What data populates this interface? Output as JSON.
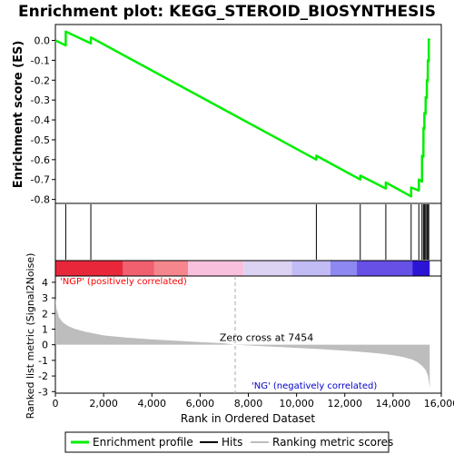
{
  "chart_data": {
    "type": "line",
    "title": "Enrichment plot: KEGG_STEROID_BIOSYNTHESIS",
    "es_panel": {
      "ylabel": "Enrichment score (ES)",
      "ylim": [
        -0.82,
        0.08
      ],
      "yticks": [
        0.0,
        -0.1,
        -0.2,
        -0.3,
        -0.4,
        -0.5,
        -0.6,
        -0.7,
        -0.8
      ],
      "ytick_labels": [
        "0.0",
        "-0.1",
        "-0.2",
        "-0.3",
        "-0.4",
        "-0.5",
        "-0.6",
        "-0.7",
        "-0.8"
      ],
      "series": [
        {
          "name": "Enrichment profile",
          "color": "#00ee00",
          "x": [
            0,
            430,
            431,
            1470,
            1471,
            10820,
            10821,
            12640,
            12641,
            13700,
            13701,
            14750,
            14751,
            15070,
            15071,
            15200,
            15201,
            15260,
            15261,
            15300,
            15301,
            15350,
            15351,
            15400,
            15401,
            15440,
            15441,
            15480,
            15481,
            15520
          ],
          "y": [
            0.0,
            -0.025,
            0.045,
            -0.015,
            0.015,
            -0.6,
            -0.58,
            -0.7,
            -0.68,
            -0.745,
            -0.715,
            -0.785,
            -0.74,
            -0.755,
            -0.7,
            -0.71,
            -0.58,
            -0.585,
            -0.44,
            -0.445,
            -0.365,
            -0.37,
            -0.285,
            -0.29,
            -0.2,
            -0.205,
            -0.1,
            -0.105,
            0.005,
            0.0
          ]
        }
      ]
    },
    "hits": {
      "name": "Hits",
      "positions": [
        430,
        1470,
        10820,
        12640,
        13700,
        14750,
        15070,
        15200,
        15260,
        15300,
        15350,
        15400,
        15440,
        15480
      ]
    },
    "ranking_colorbar": {
      "segments": [
        {
          "from": 0,
          "to": 2800,
          "color": "#e8283a"
        },
        {
          "from": 2800,
          "to": 4100,
          "color": "#f0606e"
        },
        {
          "from": 4100,
          "to": 5500,
          "color": "#f6868e"
        },
        {
          "from": 5500,
          "to": 7800,
          "color": "#f8c0dc"
        },
        {
          "from": 7800,
          "to": 9800,
          "color": "#dcd2f2"
        },
        {
          "from": 9800,
          "to": 11400,
          "color": "#c2bcf4"
        },
        {
          "from": 11400,
          "to": 12500,
          "color": "#8e88f2"
        },
        {
          "from": 12500,
          "to": 14800,
          "color": "#6650e6"
        },
        {
          "from": 14800,
          "to": 15520,
          "color": "#2c14d4"
        }
      ]
    },
    "metric_panel": {
      "ylabel": "Ranked list metric (Signal2Noise)",
      "xlabel": "Rank in Ordered Dataset",
      "xlim": [
        0,
        16000
      ],
      "xticks": [
        0,
        2000,
        4000,
        6000,
        8000,
        10000,
        12000,
        14000,
        16000
      ],
      "xtick_labels": [
        "0",
        "2,000",
        "4,000",
        "6,000",
        "8,000",
        "10,000",
        "12,000",
        "14,000",
        "16,000"
      ],
      "ylim": [
        -3.1,
        4.4
      ],
      "yticks": [
        4,
        3,
        2,
        1,
        0,
        -1,
        -2,
        -3
      ],
      "ytick_labels": [
        "4",
        "3",
        "2",
        "1",
        "0",
        "-1",
        "-2",
        "-3"
      ],
      "fill_color": "#bdbdbd",
      "x": [
        0,
        50,
        150,
        300,
        500,
        800,
        1200,
        2000,
        3000,
        4000,
        5000,
        6000,
        7000,
        7454,
        8000,
        9000,
        10000,
        11000,
        12000,
        13000,
        13500,
        14000,
        14400,
        14800,
        15000,
        15200,
        15350,
        15450,
        15500,
        15520
      ],
      "y": [
        3.0,
        2.3,
        1.75,
        1.45,
        1.22,
        1.02,
        0.85,
        0.6,
        0.45,
        0.35,
        0.26,
        0.17,
        0.09,
        0.0,
        -0.05,
        -0.12,
        -0.2,
        -0.28,
        -0.38,
        -0.5,
        -0.57,
        -0.67,
        -0.78,
        -0.95,
        -1.1,
        -1.35,
        -1.6,
        -2.0,
        -2.5,
        -2.8
      ],
      "zero_cross_label": "Zero cross at 7454",
      "zero_cross": 7454,
      "pos_label": "'NGP' (positively correlated)",
      "neg_label": "'NG' (negatively correlated)",
      "pos_color": "#ff0000",
      "neg_color": "#0000cc"
    },
    "legend": {
      "placement": "bottom",
      "items": [
        {
          "label": "Enrichment profile",
          "color": "#00ee00"
        },
        {
          "label": "Hits",
          "color": "#000000"
        },
        {
          "label": "Ranking metric scores",
          "color": "#bdbdbd"
        }
      ]
    }
  }
}
